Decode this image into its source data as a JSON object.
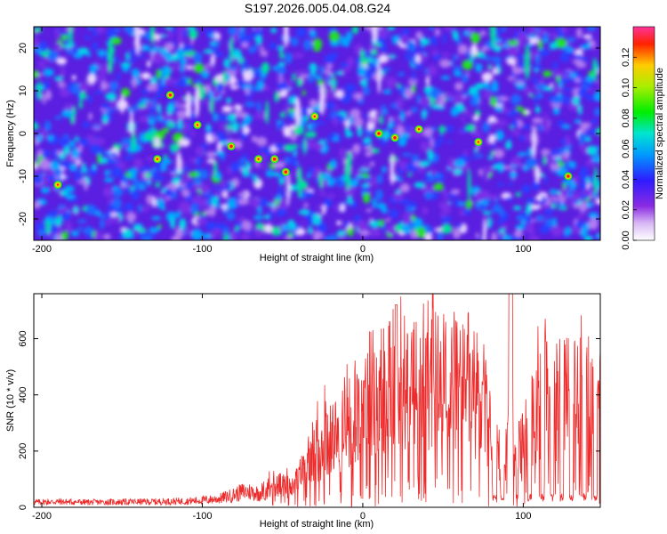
{
  "title": "S197.2026.005.04.08.G24",
  "chart_data": [
    {
      "type": "heatmap",
      "xlabel": "Height of straight line (km)",
      "ylabel": "Frequency (Hz)",
      "xlim": [
        -205,
        148
      ],
      "ylim": [
        -25,
        25
      ],
      "xticks": [
        -200,
        -100,
        0,
        100
      ],
      "yticks": [
        -20,
        -10,
        0,
        10,
        20
      ],
      "colorbar": {
        "label": "Normalized spectral amplitude",
        "range": [
          0,
          0.14
        ],
        "ticks": [
          "0.00",
          "0.02",
          "0.04",
          "0.06",
          "0.08",
          "0.10",
          "0.12"
        ]
      },
      "hot_spots": [
        {
          "x": -82,
          "y": -3,
          "level": 0.13
        },
        {
          "x": -65,
          "y": -6,
          "level": 0.1
        },
        {
          "x": -55,
          "y": -6,
          "level": 0.11
        },
        {
          "x": -48,
          "y": -9,
          "level": 0.12
        },
        {
          "x": -120,
          "y": 9,
          "level": 0.11
        },
        {
          "x": -103,
          "y": 2,
          "level": 0.1
        },
        {
          "x": -128,
          "y": -6,
          "level": 0.1
        },
        {
          "x": 10,
          "y": 0,
          "level": 0.11
        },
        {
          "x": 20,
          "y": -1,
          "level": 0.11
        },
        {
          "x": 35,
          "y": 1,
          "level": 0.1
        },
        {
          "x": 72,
          "y": -2,
          "level": 0.1
        },
        {
          "x": 128,
          "y": -10,
          "level": 0.11
        },
        {
          "x": -190,
          "y": -12,
          "level": 0.09
        },
        {
          "x": -30,
          "y": 4,
          "level": 0.09
        }
      ]
    },
    {
      "type": "line",
      "xlabel": "Height of straight line (km)",
      "ylabel": "SNR (10 * v/v)",
      "xlim": [
        -205,
        148
      ],
      "ylim": [
        0,
        760
      ],
      "xticks": [
        -200,
        -100,
        0,
        100
      ],
      "yticks": [
        0,
        200,
        400,
        600
      ],
      "series": [
        {
          "name": "SNR",
          "color": "#ee2a2a",
          "x": [
            -205,
            -190,
            -170,
            -150,
            -130,
            -110,
            -100,
            -90,
            -80,
            -75,
            -70,
            -65,
            -60,
            -55,
            -50,
            -45,
            -40,
            -35,
            -30,
            -25,
            -20,
            -15,
            -10,
            -5,
            0,
            5,
            10,
            15,
            20,
            25,
            30,
            35,
            40,
            45,
            50,
            55,
            60,
            65,
            70,
            75,
            80,
            85,
            90,
            92,
            95,
            100,
            105,
            110,
            115,
            120,
            125,
            130,
            135,
            140,
            145,
            148
          ],
          "values": [
            18,
            20,
            18,
            19,
            20,
            22,
            25,
            30,
            45,
            55,
            55,
            50,
            65,
            90,
            80,
            80,
            110,
            160,
            200,
            240,
            260,
            270,
            290,
            360,
            420,
            440,
            430,
            460,
            480,
            470,
            450,
            480,
            520,
            480,
            470,
            450,
            490,
            480,
            430,
            400,
            260,
            180,
            200,
            400,
            190,
            230,
            330,
            400,
            420,
            410,
            400,
            440,
            460,
            450,
            420,
            350
          ],
          "spike_mask": [
            0,
            0,
            0,
            0,
            0,
            0,
            0,
            0,
            0,
            0,
            0,
            0,
            0,
            0,
            0,
            0,
            0,
            0,
            0,
            0,
            0,
            0,
            0,
            0,
            0,
            0,
            0,
            0,
            0,
            0,
            0,
            0,
            0,
            0,
            0,
            0,
            0,
            0,
            0,
            0,
            0,
            0,
            0,
            0,
            0,
            0,
            0,
            0,
            0,
            0,
            0,
            0,
            0,
            0,
            0,
            0
          ]
        }
      ]
    }
  ]
}
